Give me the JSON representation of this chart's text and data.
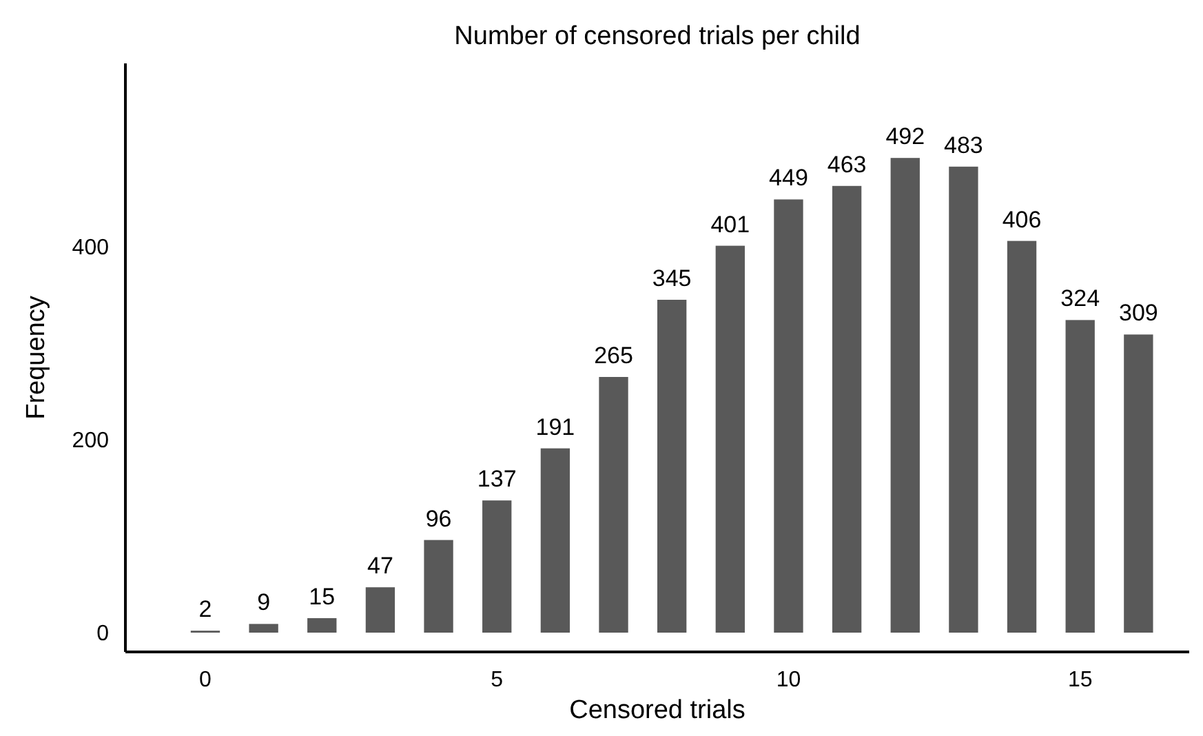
{
  "chart_data": {
    "type": "bar",
    "title": "Number of censored trials per child",
    "xlabel": "Censored trials",
    "ylabel": "Frequency",
    "x": [
      0,
      1,
      2,
      3,
      4,
      5,
      6,
      7,
      8,
      9,
      10,
      11,
      12,
      13,
      14,
      15,
      16
    ],
    "values": [
      2,
      9,
      15,
      47,
      96,
      137,
      191,
      265,
      345,
      401,
      449,
      463,
      492,
      483,
      406,
      324,
      309
    ],
    "color": "#595959",
    "data_labels": true,
    "xlim": [
      -1.37,
      16.87
    ],
    "xticks": [
      0,
      5,
      10,
      15
    ],
    "ylim": [
      -20,
      590
    ],
    "yticks": [
      0,
      200,
      400
    ],
    "grid": false
  }
}
